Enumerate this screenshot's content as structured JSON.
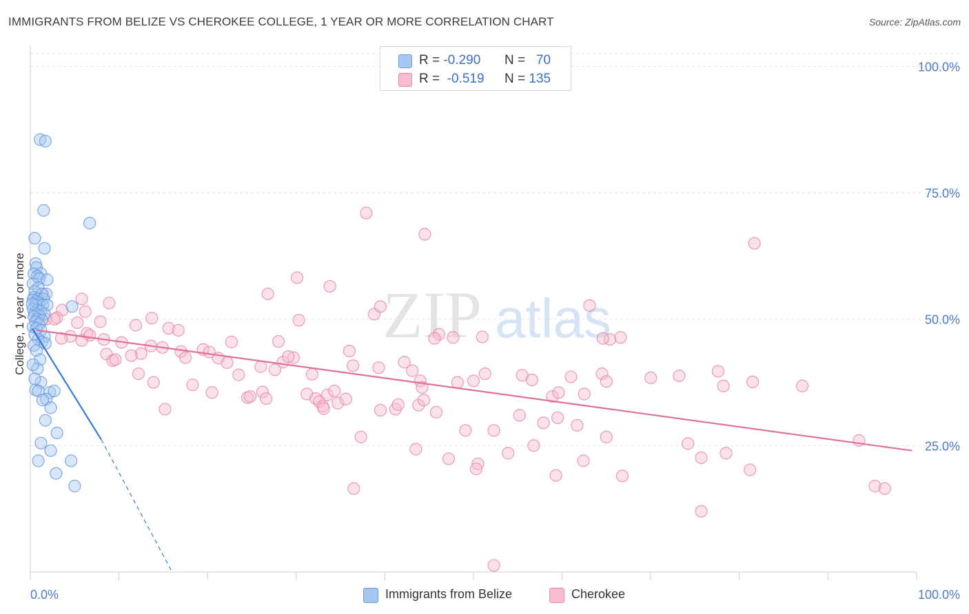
{
  "title": "IMMIGRANTS FROM BELIZE VS CHEROKEE COLLEGE, 1 YEAR OR MORE CORRELATION CHART",
  "source": "Source: ZipAtlas.com",
  "watermark": {
    "zip": "ZIP",
    "atlas": "atlas"
  },
  "legend": {
    "rows": [
      {
        "r_label": "R =",
        "r_value": "-0.290",
        "n_label": "N =",
        "n_value": "70",
        "color": "#a7c7f2",
        "stroke": "#6a9be0"
      },
      {
        "r_label": "R =",
        "r_value": "-0.519",
        "n_label": "N =",
        "n_value": "135",
        "color": "#f7bccd",
        "stroke": "#e88aa8"
      }
    ]
  },
  "chart_data": {
    "type": "scatter",
    "title": "IMMIGRANTS FROM BELIZE VS CHEROKEE COLLEGE, 1 YEAR OR MORE CORRELATION CHART",
    "xlabel": "",
    "ylabel": "College, 1 year or more",
    "xlim": [
      0,
      100
    ],
    "ylim": [
      0,
      102.5
    ],
    "x_tick_labels": [
      "0.0%",
      "100.0%"
    ],
    "y_tick_labels": [
      "25.0%",
      "50.0%",
      "75.0%",
      "100.0%"
    ],
    "y_ticks": [
      25,
      50,
      75,
      100
    ],
    "grid": true,
    "series": [
      {
        "name": "Immigrants from Belize",
        "color": "#6a9be0",
        "fill": "#a7c7f2",
        "r": -0.29,
        "n": 70,
        "trend": {
          "x0": 0.2,
          "y0": 48.2,
          "x1": 8.0,
          "y1": 26.2,
          "dash_to_x": 16.0,
          "dash_to_y": 0.0
        },
        "points": [
          [
            1.1,
            85.5
          ],
          [
            1.7,
            85.2
          ],
          [
            1.5,
            71.5
          ],
          [
            6.7,
            69.0
          ],
          [
            0.5,
            66.0
          ],
          [
            1.6,
            64.0
          ],
          [
            0.6,
            61.0
          ],
          [
            0.7,
            60.2
          ],
          [
            0.4,
            59.0
          ],
          [
            1.2,
            59.0
          ],
          [
            0.8,
            58.5
          ],
          [
            1.0,
            58.0
          ],
          [
            1.9,
            57.8
          ],
          [
            0.3,
            57.0
          ],
          [
            0.9,
            56.2
          ],
          [
            0.5,
            55.5
          ],
          [
            1.3,
            55.0
          ],
          [
            1.8,
            55.0
          ],
          [
            0.4,
            54.3
          ],
          [
            0.8,
            54.0
          ],
          [
            1.5,
            54.0
          ],
          [
            0.3,
            53.8
          ],
          [
            0.7,
            53.5
          ],
          [
            1.0,
            53.2
          ],
          [
            0.6,
            52.8
          ],
          [
            1.4,
            52.8
          ],
          [
            1.9,
            52.8
          ],
          [
            4.7,
            52.5
          ],
          [
            0.3,
            52.0
          ],
          [
            0.8,
            51.8
          ],
          [
            1.2,
            51.6
          ],
          [
            0.5,
            51.2
          ],
          [
            1.6,
            51.0
          ],
          [
            1.0,
            50.7
          ],
          [
            0.4,
            50.5
          ],
          [
            0.8,
            50.0
          ],
          [
            1.3,
            49.8
          ],
          [
            0.6,
            49.5
          ],
          [
            1.0,
            49.0
          ],
          [
            0.3,
            48.5
          ],
          [
            0.7,
            48.2
          ],
          [
            1.2,
            47.8
          ],
          [
            0.5,
            47.0
          ],
          [
            1.6,
            46.5
          ],
          [
            0.9,
            46.0
          ],
          [
            1.3,
            45.5
          ],
          [
            1.7,
            45.2
          ],
          [
            0.4,
            44.8
          ],
          [
            0.7,
            43.8
          ],
          [
            1.1,
            42.0
          ],
          [
            0.8,
            40.2
          ],
          [
            1.2,
            37.5
          ],
          [
            0.6,
            36.0
          ],
          [
            0.9,
            35.8
          ],
          [
            2.2,
            35.5
          ],
          [
            2.7,
            35.8
          ],
          [
            1.8,
            34.2
          ],
          [
            1.4,
            34.0
          ],
          [
            2.3,
            32.5
          ],
          [
            1.7,
            30.0
          ],
          [
            3.0,
            27.5
          ],
          [
            1.2,
            25.5
          ],
          [
            2.3,
            24.0
          ],
          [
            0.9,
            22.0
          ],
          [
            4.6,
            22.0
          ],
          [
            2.9,
            19.5
          ],
          [
            5.0,
            17.0
          ],
          [
            0.5,
            38.2
          ],
          [
            0.3,
            41.0
          ],
          [
            0.2,
            53.0
          ]
        ]
      },
      {
        "name": "Cherokee",
        "color": "#e88aa8",
        "fill": "#f7bccd",
        "r": -0.519,
        "n": 135,
        "trend": {
          "x0": 0.8,
          "y0": 47.8,
          "x1": 99.5,
          "y1": 24.0
        },
        "points": [
          [
            37.9,
            71.0
          ],
          [
            44.5,
            66.8
          ],
          [
            81.7,
            65.0
          ],
          [
            30.1,
            58.2
          ],
          [
            33.8,
            56.5
          ],
          [
            26.8,
            55.0
          ],
          [
            1.4,
            55.0
          ],
          [
            5.8,
            54.0
          ],
          [
            8.9,
            53.2
          ],
          [
            63.1,
            52.7
          ],
          [
            3.6,
            51.8
          ],
          [
            6.2,
            51.5
          ],
          [
            38.8,
            51.0
          ],
          [
            3.0,
            50.3
          ],
          [
            13.7,
            50.2
          ],
          [
            1.8,
            50.0
          ],
          [
            2.7,
            50.0
          ],
          [
            7.9,
            49.5
          ],
          [
            5.3,
            49.3
          ],
          [
            30.3,
            49.8
          ],
          [
            11.9,
            48.8
          ],
          [
            15.6,
            48.2
          ],
          [
            16.7,
            47.8
          ],
          [
            6.4,
            47.2
          ],
          [
            6.7,
            46.8
          ],
          [
            46.1,
            47.0
          ],
          [
            4.5,
            46.6
          ],
          [
            3.5,
            46.2
          ],
          [
            8.3,
            46.0
          ],
          [
            5.8,
            45.8
          ],
          [
            22.7,
            45.5
          ],
          [
            28.0,
            45.6
          ],
          [
            65.4,
            46.0
          ],
          [
            64.6,
            46.2
          ],
          [
            66.6,
            46.4
          ],
          [
            47.7,
            46.4
          ],
          [
            45.6,
            46.2
          ],
          [
            10.3,
            45.4
          ],
          [
            13.6,
            44.7
          ],
          [
            14.9,
            44.4
          ],
          [
            19.5,
            44.0
          ],
          [
            17.0,
            43.6
          ],
          [
            20.2,
            43.5
          ],
          [
            8.6,
            43.1
          ],
          [
            12.5,
            43.2
          ],
          [
            11.4,
            42.8
          ],
          [
            36.0,
            43.7
          ],
          [
            9.3,
            41.8
          ],
          [
            9.6,
            42.0
          ],
          [
            17.5,
            42.4
          ],
          [
            22.2,
            41.4
          ],
          [
            21.2,
            42.3
          ],
          [
            26.0,
            40.6
          ],
          [
            28.5,
            41.5
          ],
          [
            29.7,
            42.4
          ],
          [
            29.1,
            42.6
          ],
          [
            36.4,
            40.8
          ],
          [
            39.3,
            40.4
          ],
          [
            42.2,
            41.5
          ],
          [
            43.1,
            39.8
          ],
          [
            27.6,
            40.0
          ],
          [
            31.8,
            39.1
          ],
          [
            23.5,
            39.0
          ],
          [
            12.2,
            39.2
          ],
          [
            13.9,
            37.5
          ],
          [
            39.5,
            52.5
          ],
          [
            51.0,
            46.5
          ],
          [
            51.3,
            39.2
          ],
          [
            55.5,
            38.9
          ],
          [
            56.6,
            38.0
          ],
          [
            44.0,
            37.8
          ],
          [
            44.2,
            36.5
          ],
          [
            48.2,
            37.5
          ],
          [
            50.0,
            37.8
          ],
          [
            61.0,
            38.6
          ],
          [
            64.5,
            39.2
          ],
          [
            65.0,
            37.7
          ],
          [
            70.0,
            38.4
          ],
          [
            73.2,
            38.8
          ],
          [
            77.6,
            39.7
          ],
          [
            78.2,
            36.8
          ],
          [
            81.5,
            37.6
          ],
          [
            87.1,
            36.8
          ],
          [
            18.3,
            37.0
          ],
          [
            20.5,
            35.5
          ],
          [
            24.5,
            34.5
          ],
          [
            24.8,
            34.7
          ],
          [
            26.2,
            35.6
          ],
          [
            26.6,
            34.3
          ],
          [
            31.2,
            35.2
          ],
          [
            32.2,
            34.3
          ],
          [
            33.5,
            35.0
          ],
          [
            34.3,
            35.8
          ],
          [
            32.6,
            33.7
          ],
          [
            33.0,
            32.8
          ],
          [
            34.7,
            33.4
          ],
          [
            41.2,
            32.2
          ],
          [
            41.5,
            33.1
          ],
          [
            43.8,
            33.0
          ],
          [
            44.4,
            34.0
          ],
          [
            15.2,
            32.2
          ],
          [
            33.1,
            32.3
          ],
          [
            39.5,
            32.0
          ],
          [
            45.8,
            31.6
          ],
          [
            55.2,
            31.0
          ],
          [
            58.9,
            34.7
          ],
          [
            59.6,
            35.5
          ],
          [
            62.5,
            35.2
          ],
          [
            59.5,
            30.5
          ],
          [
            57.9,
            29.5
          ],
          [
            49.1,
            28.0
          ],
          [
            52.3,
            28.0
          ],
          [
            61.7,
            29.0
          ],
          [
            65.0,
            26.7
          ],
          [
            74.2,
            25.4
          ],
          [
            78.5,
            23.5
          ],
          [
            37.3,
            26.7
          ],
          [
            43.5,
            24.3
          ],
          [
            56.8,
            25.0
          ],
          [
            53.9,
            23.5
          ],
          [
            62.4,
            22.0
          ],
          [
            47.2,
            22.4
          ],
          [
            50.5,
            21.4
          ],
          [
            75.7,
            22.6
          ],
          [
            81.2,
            20.2
          ],
          [
            59.3,
            19.1
          ],
          [
            50.3,
            20.4
          ],
          [
            66.8,
            19.0
          ],
          [
            36.5,
            16.5
          ],
          [
            95.3,
            17.0
          ],
          [
            96.4,
            16.5
          ],
          [
            75.7,
            12.0
          ],
          [
            93.5,
            26.0
          ],
          [
            52.3,
            1.3
          ],
          [
            35.6,
            34.2
          ]
        ]
      }
    ]
  },
  "bottom_legend": [
    {
      "label": "Immigrants from Belize",
      "color": "#a7c7f2",
      "stroke": "#6a9be0"
    },
    {
      "label": "Cherokee",
      "color": "#f7bccd",
      "stroke": "#e88aa8"
    }
  ]
}
